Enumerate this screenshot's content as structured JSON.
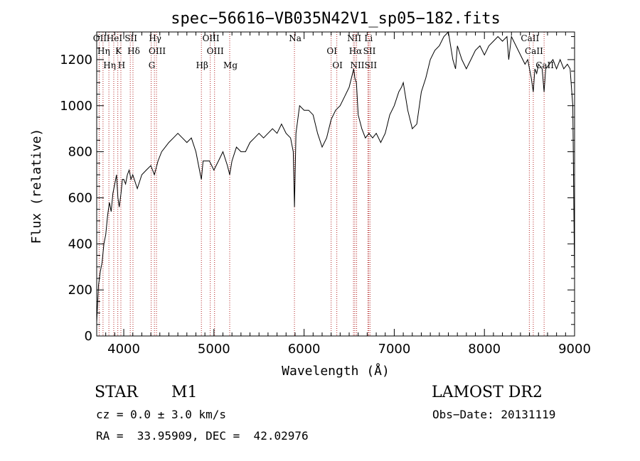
{
  "chart_data": {
    "type": "line",
    "title": "spec−56616−VB035N42V1_sp05−182.fits",
    "xlabel": "Wavelength (Å)",
    "ylabel": "Flux (relative)",
    "xlim": [
      3700,
      9000
    ],
    "ylim": [
      0,
      1320
    ],
    "x_ticks": [
      4000,
      5000,
      6000,
      7000,
      8000,
      9000
    ],
    "y_ticks": [
      0,
      200,
      400,
      600,
      800,
      1000,
      1200
    ],
    "grid": false,
    "series": [
      {
        "x": [
          3700,
          3720,
          3740,
          3760,
          3780,
          3800,
          3820,
          3840,
          3860,
          3880,
          3900,
          3920,
          3935,
          3950,
          3970,
          3985,
          4000,
          4020,
          4040,
          4060,
          4080,
          4100,
          4150,
          4200,
          4250,
          4300,
          4340,
          4380,
          4420,
          4460,
          4500,
          4550,
          4600,
          4650,
          4700,
          4750,
          4800,
          4850,
          4861,
          4880,
          4900,
          4950,
          5000,
          5050,
          5100,
          5150,
          5175,
          5200,
          5250,
          5300,
          5350,
          5400,
          5450,
          5500,
          5550,
          5600,
          5650,
          5700,
          5750,
          5800,
          5850,
          5880,
          5893,
          5910,
          5950,
          6000,
          6050,
          6100,
          6150,
          6200,
          6250,
          6300,
          6350,
          6400,
          6450,
          6500,
          6550,
          6563,
          6580,
          6600,
          6640,
          6680,
          6720,
          6760,
          6800,
          6850,
          6900,
          6950,
          7000,
          7050,
          7080,
          7100,
          7150,
          7200,
          7250,
          7300,
          7350,
          7400,
          7450,
          7500,
          7550,
          7600,
          7650,
          7680,
          7700,
          7750,
          7800,
          7850,
          7900,
          7950,
          8000,
          8050,
          8100,
          8150,
          8200,
          8250,
          8270,
          8300,
          8350,
          8400,
          8450,
          8480,
          8500,
          8520,
          8542,
          8560,
          8580,
          8600,
          8640,
          8662,
          8680,
          8720,
          8760,
          8800,
          8840,
          8880,
          8920,
          8950,
          8980,
          9000
        ],
        "y": [
          60,
          220,
          280,
          320,
          400,
          440,
          520,
          580,
          540,
          620,
          660,
          700,
          600,
          560,
          620,
          680,
          680,
          660,
          700,
          720,
          680,
          700,
          640,
          700,
          720,
          740,
          700,
          760,
          800,
          820,
          840,
          860,
          880,
          860,
          840,
          860,
          800,
          700,
          680,
          760,
          760,
          760,
          720,
          760,
          800,
          740,
          700,
          760,
          820,
          800,
          800,
          840,
          860,
          880,
          860,
          880,
          900,
          880,
          920,
          880,
          860,
          800,
          560,
          880,
          1000,
          980,
          980,
          960,
          880,
          820,
          860,
          940,
          980,
          1000,
          1040,
          1080,
          1160,
          1120,
          1100,
          960,
          900,
          860,
          880,
          860,
          880,
          840,
          880,
          960,
          1000,
          1060,
          1080,
          1100,
          980,
          900,
          920,
          1060,
          1120,
          1200,
          1240,
          1260,
          1300,
          1330,
          1200,
          1160,
          1260,
          1200,
          1160,
          1200,
          1240,
          1260,
          1220,
          1260,
          1280,
          1300,
          1280,
          1300,
          1200,
          1300,
          1260,
          1220,
          1180,
          1200,
          1160,
          1120,
          1060,
          1160,
          1140,
          1180,
          1160,
          1060,
          1160,
          1180,
          1200,
          1160,
          1200,
          1160,
          1180,
          1160,
          1000,
          260
        ]
      }
    ],
    "lines": [
      {
        "wl": 3727,
        "labels": [
          "OII"
        ]
      },
      {
        "wl": 3770,
        "labels": [
          "Hη"
        ]
      },
      {
        "wl": 3835,
        "labels": [
          "Hη"
        ]
      },
      {
        "wl": 3889,
        "labels": [
          "HeI"
        ]
      },
      {
        "wl": 3934,
        "labels": [
          "K"
        ]
      },
      {
        "wl": 3968,
        "labels": [
          "H"
        ]
      },
      {
        "wl": 4072,
        "labels": [
          "SII"
        ]
      },
      {
        "wl": 4102,
        "labels": [
          "Hδ"
        ]
      },
      {
        "wl": 4304,
        "labels": [
          "G"
        ]
      },
      {
        "wl": 4340,
        "labels": [
          "Hγ"
        ]
      },
      {
        "wl": 4363,
        "labels": [
          "OIII"
        ]
      },
      {
        "wl": 4861,
        "labels": [
          "Hβ"
        ]
      },
      {
        "wl": 4959,
        "labels": [
          "OIII"
        ]
      },
      {
        "wl": 5007,
        "labels": [
          "OIII"
        ]
      },
      {
        "wl": 5175,
        "labels": [
          "Mg"
        ]
      },
      {
        "wl": 5893,
        "labels": [
          "Na"
        ]
      },
      {
        "wl": 6300,
        "labels": [
          "OI"
        ]
      },
      {
        "wl": 6363,
        "labels": [
          "OI"
        ]
      },
      {
        "wl": 6548,
        "labels": [
          "NII"
        ]
      },
      {
        "wl": 6563,
        "labels": [
          "Hα"
        ]
      },
      {
        "wl": 6583,
        "labels": [
          "NII"
        ]
      },
      {
        "wl": 6707,
        "labels": [
          "Li"
        ]
      },
      {
        "wl": 6717,
        "labels": [
          "SII"
        ]
      },
      {
        "wl": 6731,
        "labels": [
          "SII"
        ]
      },
      {
        "wl": 8498,
        "labels": [
          "CaII"
        ]
      },
      {
        "wl": 8542,
        "labels": [
          "CaII"
        ]
      },
      {
        "wl": 8662,
        "labels": [
          "CaII"
        ]
      }
    ],
    "line_color": "#000000",
    "marker_color": "#b22222"
  },
  "info": {
    "class": "STAR",
    "subclass": "M1",
    "survey": "LAMOST DR2",
    "cz": "cz = 0.0 ± 3.0 km/s",
    "obs_date": "Obs−Date: 20131119",
    "coords": "RA =  33.95909, DEC =  42.02976"
  }
}
